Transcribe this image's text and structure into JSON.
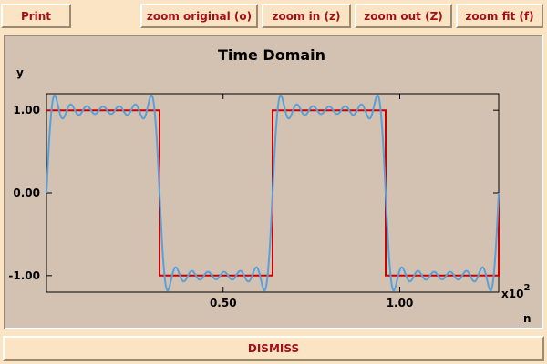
{
  "toolbar": {
    "print_label": "Print",
    "zoom_original_label": "zoom original (o)",
    "zoom_in_label": "zoom in (z)",
    "zoom_out_label": "zoom out (Z)",
    "zoom_fit_label": "zoom fit (f)"
  },
  "footer": {
    "dismiss_label": "DISMISS"
  },
  "colors": {
    "background": "#fbe4c4",
    "plot_background": "#d3c2b2",
    "button_text": "#a50f14",
    "square_wave": "#cc0000",
    "approximation": "#5aa0d8"
  },
  "chart_data": {
    "type": "line",
    "title": "Time Domain",
    "xlabel": "n",
    "ylabel": "y",
    "x_multiplier_base": "x10",
    "x_multiplier_exponent": "2",
    "xlim": [
      0,
      1.28
    ],
    "ylim": [
      -1.2,
      1.2
    ],
    "x_ticks": [
      {
        "value": 0.5,
        "label": "0.50"
      },
      {
        "value": 1.0,
        "label": "1.00"
      }
    ],
    "y_ticks": [
      {
        "value": 1.0,
        "label": "1.00"
      },
      {
        "value": 0.0,
        "label": "0.00"
      },
      {
        "value": -1.0,
        "label": "-1.00"
      }
    ],
    "grid": false,
    "series": [
      {
        "kind": "square-wave",
        "period": 0.64,
        "amplitude": 1.0,
        "color": "#cc0000"
      },
      {
        "kind": "fourier-approximation",
        "period": 0.64,
        "harmonics": [
          1,
          3,
          5,
          7,
          9,
          11,
          13
        ],
        "color": "#5aa0d8"
      }
    ]
  }
}
